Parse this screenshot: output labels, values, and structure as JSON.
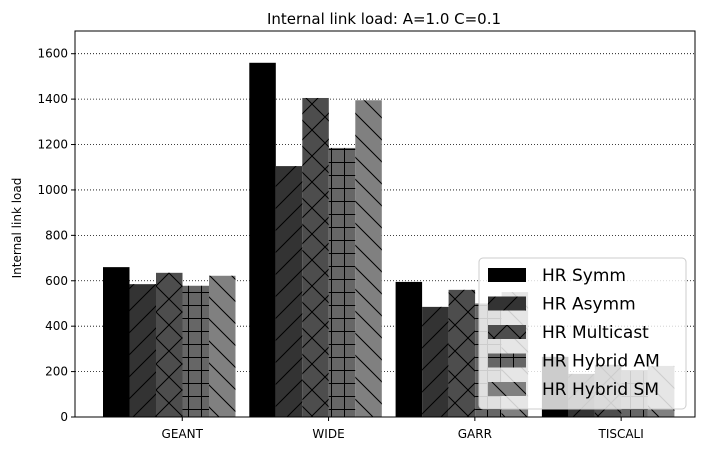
{
  "chart_data": {
    "type": "bar",
    "title": "Internal link load: A=1.0 C=0.1",
    "xlabel": "",
    "ylabel": "Internal link load",
    "categories": [
      "GEANT",
      "WIDE",
      "GARR",
      "TISCALI"
    ],
    "ylim": [
      0,
      1700
    ],
    "yticks": [
      0,
      200,
      400,
      600,
      800,
      1000,
      1200,
      1400,
      1600
    ],
    "grid": "y-dotted",
    "legend_position": "lower-right",
    "series": [
      {
        "name": "HR Symm",
        "values": [
          660,
          1560,
          595,
          265
        ],
        "color": "#000000",
        "hatch": "none"
      },
      {
        "name": "HR Asymm",
        "values": [
          585,
          1105,
          485,
          190
        ],
        "color": "#333333",
        "hatch": "diagonal-forward"
      },
      {
        "name": "HR Multicast",
        "values": [
          635,
          1405,
          560,
          230
        ],
        "color": "#4d4d4d",
        "hatch": "cross-diagonal"
      },
      {
        "name": "HR Hybrid AM",
        "values": [
          578,
          1185,
          500,
          205
        ],
        "color": "#666666",
        "hatch": "grid"
      },
      {
        "name": "HR Hybrid SM",
        "values": [
          622,
          1395,
          550,
          225
        ],
        "color": "#808080",
        "hatch": "diagonal-back"
      }
    ]
  }
}
